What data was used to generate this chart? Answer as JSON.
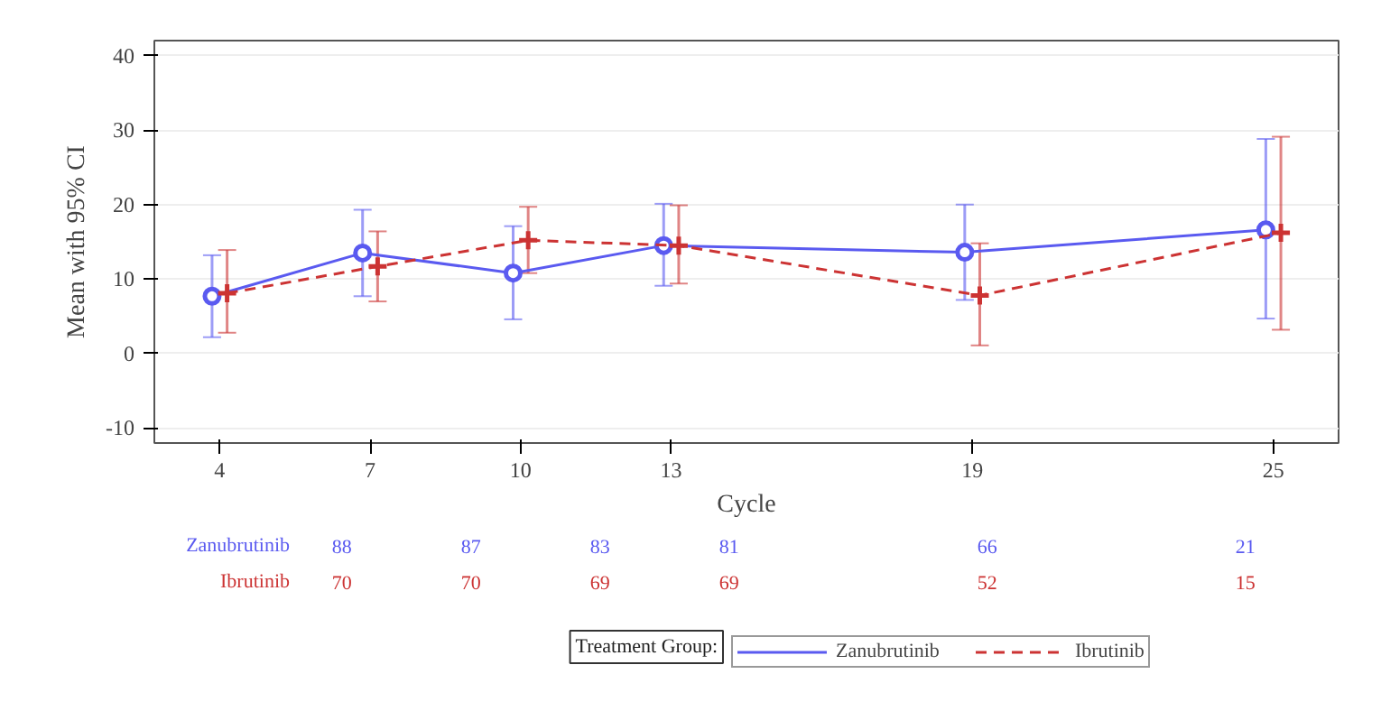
{
  "chart_data": {
    "type": "line",
    "xlabel": "Cycle",
    "ylabel": "Mean with 95% CI",
    "legend_title": "Treatment Group:",
    "xlim": [
      2.7,
      26.3
    ],
    "xticks": [
      4,
      7,
      10,
      13,
      19,
      25
    ],
    "ylim": [
      -12,
      42
    ],
    "yticks": [
      -10,
      0,
      10,
      20,
      30,
      40
    ],
    "grid": "y",
    "legend": "bottom",
    "series": [
      {
        "name": "Zanubrutinib",
        "color": "#5a5af0",
        "marker": "circle",
        "line_style": "solid",
        "x": [
          3.85,
          6.85,
          9.85,
          12.85,
          18.85,
          24.85
        ],
        "values": [
          7.7,
          13.5,
          10.8,
          14.5,
          13.6,
          16.6
        ],
        "errors": [
          [
            2.2,
            13.2
          ],
          [
            7.7,
            19.3
          ],
          [
            4.6,
            17.1
          ],
          [
            9.1,
            20.1
          ],
          [
            7.2,
            20.0
          ],
          [
            4.7,
            28.8
          ]
        ]
      },
      {
        "name": "Ibrutinib",
        "color": "#cc3333",
        "marker": "cross",
        "line_style": "dashed",
        "x": [
          4.15,
          7.15,
          10.15,
          13.15,
          19.15,
          25.15
        ],
        "values": [
          8.1,
          11.7,
          15.2,
          14.5,
          7.8,
          16.2
        ],
        "errors": [
          [
            2.8,
            13.9
          ],
          [
            7.0,
            16.4
          ],
          [
            10.8,
            19.7
          ],
          [
            9.4,
            19.9
          ],
          [
            1.1,
            14.8
          ],
          [
            3.2,
            29.1
          ]
        ]
      }
    ],
    "annotations": [
      "Zanubrutinib",
      "88",
      "87",
      "83",
      "81",
      "66",
      "21",
      "Ibrutinib",
      "70",
      "70",
      "69",
      "69",
      "52",
      "15"
    ]
  }
}
